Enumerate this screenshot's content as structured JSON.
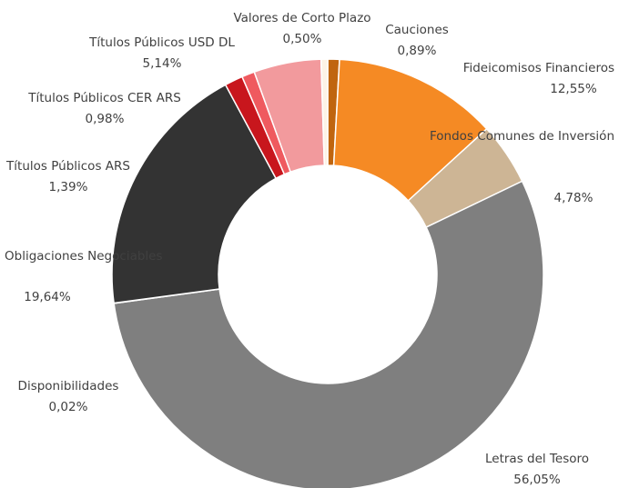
{
  "chart_data": {
    "type": "donut",
    "categories": [
      "Cauciones",
      "Fideicomisos Financieros",
      "Fondos Comunes de Inversión",
      "Letras del Tesoro",
      "Disponibilidades",
      "Obligaciones Negociables",
      "Títulos Públicos ARS",
      "Títulos Públicos CER ARS",
      "Títulos Públicos USD DL",
      "Valores de Corto Plazo"
    ],
    "values": [
      0.89,
      12.55,
      4.78,
      56.05,
      0.02,
      19.64,
      1.39,
      0.98,
      5.14,
      0.5
    ],
    "value_labels": [
      "0,89%",
      "12,55%",
      "4,78%",
      "56,05%",
      "0,02%",
      "19,64%",
      "1,39%",
      "0,98%",
      "5,14%",
      "0,50%"
    ],
    "colors": [
      "#c0650f",
      "#f58a24",
      "#cdb595",
      "#7f7f7f",
      "#7f7f7f",
      "#333333",
      "#c8161d",
      "#ef5a5f",
      "#f29a9d",
      "#fdf3e6"
    ]
  }
}
